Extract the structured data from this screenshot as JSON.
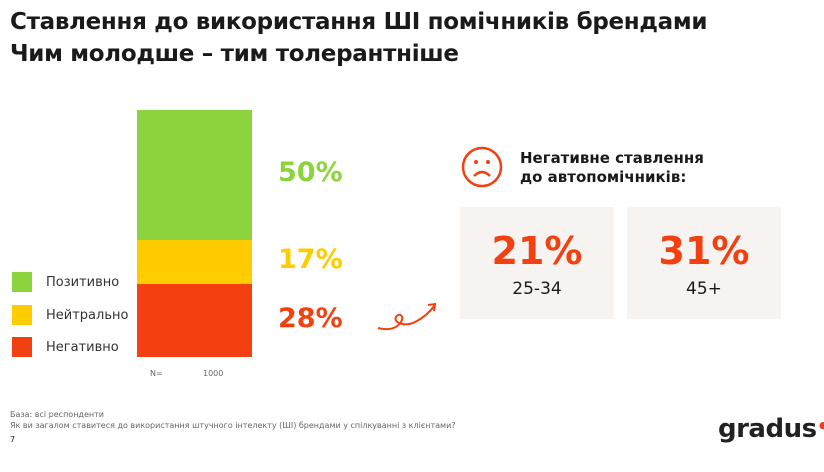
{
  "title_line1": "Ставлення до використання ШІ помічників брендами",
  "title_line2": "Чим молодше – тим толерантніше",
  "chart_data": {
    "type": "bar",
    "stacked": true,
    "categories": [
      "N= 1000"
    ],
    "series": [
      {
        "name": "Позитивно",
        "values": [
          50
        ],
        "label": "50%",
        "color": "#8dd33d"
      },
      {
        "name": "Нейтрально",
        "values": [
          17
        ],
        "label": "17%",
        "color": "#ffcc00"
      },
      {
        "name": "Негативно",
        "values": [
          28
        ],
        "label": "28%",
        "color": "#f24010"
      }
    ],
    "n_label": "N=",
    "n_value": "1000",
    "legend_placement": "left"
  },
  "callout": {
    "icon": "sad-face-icon",
    "heading_line1": "Негативне ставлення",
    "heading_line2": "до автопомічників:",
    "cards": [
      {
        "value": "21%",
        "label": "25-34"
      },
      {
        "value": "31%",
        "label": "45+"
      }
    ]
  },
  "footer": {
    "base": "База: всі респонденти",
    "question": "Як ви загалом ставитеся до використання штучного інтелекту (ШІ) брендами у спілкуванні з клієнтами?",
    "page": "7",
    "logo": "gradus"
  }
}
